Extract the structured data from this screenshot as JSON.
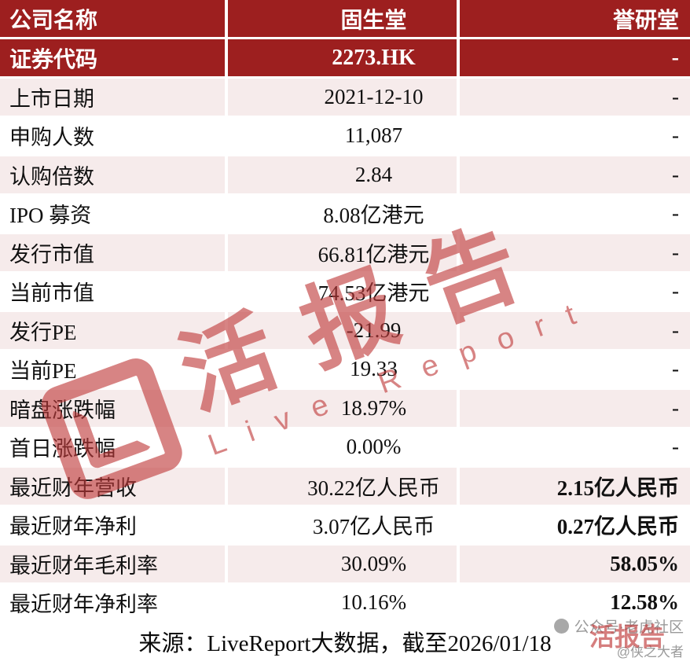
{
  "chart_data": {
    "type": "table",
    "columns": [
      "公司名称",
      "固生堂",
      "誉研堂"
    ],
    "code_row": {
      "label": "证券代码",
      "col2": "2273.HK",
      "col3": "-"
    },
    "rows": [
      {
        "label": "上市日期",
        "col2": "2021-12-10",
        "col3": "-",
        "col3_bold": false
      },
      {
        "label": "申购人数",
        "col2": "11,087",
        "col3": "-",
        "col3_bold": false
      },
      {
        "label": "认购倍数",
        "col2": "2.84",
        "col3": "-",
        "col3_bold": false
      },
      {
        "label": "IPO 募资",
        "col2": "8.08亿港元",
        "col3": "-",
        "col3_bold": false
      },
      {
        "label": "发行市值",
        "col2": "66.81亿港元",
        "col3": "-",
        "col3_bold": false
      },
      {
        "label": "当前市值",
        "col2": "74.53亿港元",
        "col3": "-",
        "col3_bold": false
      },
      {
        "label": "发行PE",
        "col2": "-21.99",
        "col3": "-",
        "col3_bold": false
      },
      {
        "label": "当前PE",
        "col2": "19.33",
        "col3": "-",
        "col3_bold": false
      },
      {
        "label": "暗盘涨跌幅",
        "col2": "18.97%",
        "col3": "-",
        "col3_bold": false
      },
      {
        "label": "首日涨跌幅",
        "col2": "0.00%",
        "col3": "-",
        "col3_bold": false
      },
      {
        "label": "最近财年营收",
        "col2": "30.22亿人民币",
        "col3": "2.15亿人民币",
        "col3_bold": true
      },
      {
        "label": "最近财年净利",
        "col2": "3.07亿人民币",
        "col3": "0.27亿人民币",
        "col3_bold": true
      },
      {
        "label": "最近财年毛利率",
        "col2": "30.09%",
        "col3": "58.05%",
        "col3_bold": true
      },
      {
        "label": "最近财年净利率",
        "col2": "10.16%",
        "col3": "12.58%",
        "col3_bold": true
      }
    ],
    "source_note": "来源：LiveReport大数据，截至2026/01/18"
  },
  "watermark": {
    "brand_cn": "活报告",
    "brand_en": "Live Report",
    "corner_account": "公众号·老虎社区",
    "corner_author": "@侠之大者",
    "corner_brand": "活报告"
  },
  "colors": {
    "header_red": "#9D1F1F",
    "row_pink": "#F6EBEB",
    "watermark_red": "#C03A3A"
  }
}
